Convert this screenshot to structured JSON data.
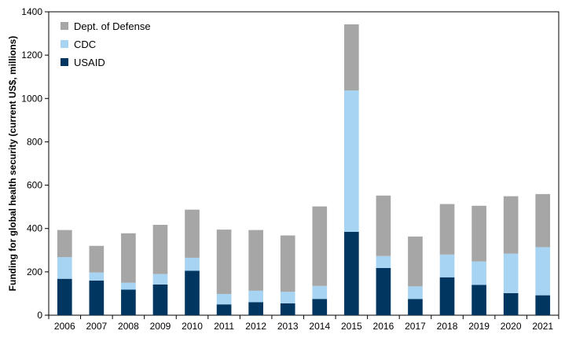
{
  "chart_data": {
    "type": "bar",
    "stacked": true,
    "title": "",
    "xlabel": "",
    "ylabel": "Funding  for global health security (current US$, millions)",
    "ylim": [
      0,
      1400
    ],
    "yticks": [
      0,
      200,
      400,
      600,
      800,
      1000,
      1200,
      1400
    ],
    "grid": false,
    "legend_position": "top-left",
    "categories": [
      "2006",
      "2007",
      "2008",
      "2009",
      "2010",
      "2011",
      "2012",
      "2013",
      "2014",
      "2015",
      "2016",
      "2017",
      "2018",
      "2019",
      "2020",
      "2021"
    ],
    "series": [
      {
        "name": "USAID",
        "color": "#003660",
        "values": [
          168,
          160,
          118,
          142,
          205,
          50,
          60,
          55,
          75,
          385,
          218,
          75,
          175,
          140,
          102,
          92
        ]
      },
      {
        "name": "CDC",
        "color": "#a6d4f2",
        "values": [
          100,
          37,
          32,
          48,
          60,
          48,
          53,
          53,
          60,
          652,
          55,
          58,
          105,
          108,
          182,
          222
        ]
      },
      {
        "name": "Dept. of Defense",
        "color": "#a6a6a6",
        "values": [
          125,
          123,
          228,
          227,
          222,
          297,
          280,
          260,
          367,
          305,
          279,
          230,
          233,
          257,
          265,
          245
        ]
      }
    ],
    "legend_order": [
      "Dept. of Defense",
      "CDC",
      "USAID"
    ]
  }
}
